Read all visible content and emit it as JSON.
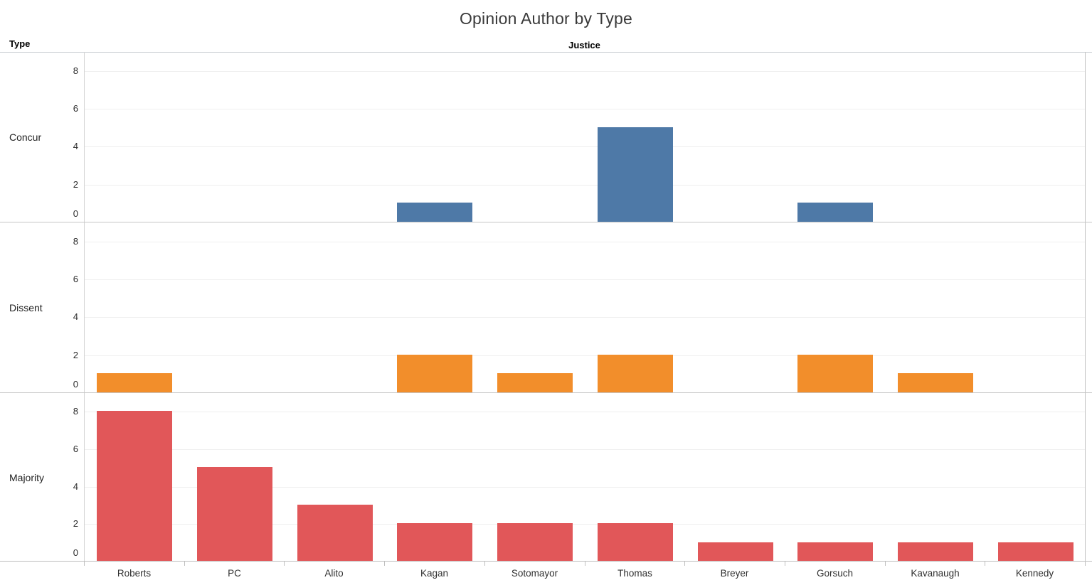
{
  "chart_data": {
    "type": "bar",
    "layout": "trellis-rows",
    "title": "Opinion Author by Type",
    "row_header": "Type",
    "col_header": "Justice",
    "categories": [
      "Roberts",
      "PC",
      "Alito",
      "Kagan",
      "Sotomayor",
      "Thomas",
      "Breyer",
      "Gorsuch",
      "Kavanaugh",
      "Kennedy"
    ],
    "series": [
      {
        "name": "Concur",
        "color": "#4E79A7",
        "values": [
          0,
          0,
          0,
          1,
          0,
          5,
          0,
          1,
          0,
          0
        ]
      },
      {
        "name": "Dissent",
        "color": "#F28E2B",
        "values": [
          1,
          0,
          0,
          2,
          1,
          2,
          0,
          2,
          1,
          0
        ]
      },
      {
        "name": "Majority",
        "color": "#E15759",
        "values": [
          8,
          5,
          3,
          2,
          2,
          2,
          1,
          1,
          1,
          1
        ]
      }
    ],
    "y_ticks": [
      0,
      2,
      4,
      6,
      8
    ],
    "y_max": 9,
    "grid": true,
    "legend": "none"
  },
  "style_colors": {
    "gridline": "#efefef",
    "panel_separator": "#c6c6c6",
    "axis_line": "#bdbdbd",
    "plot_border": "#c4c4c4",
    "title_text": "#3a3a3a",
    "label_text": "#2b2b2b"
  }
}
